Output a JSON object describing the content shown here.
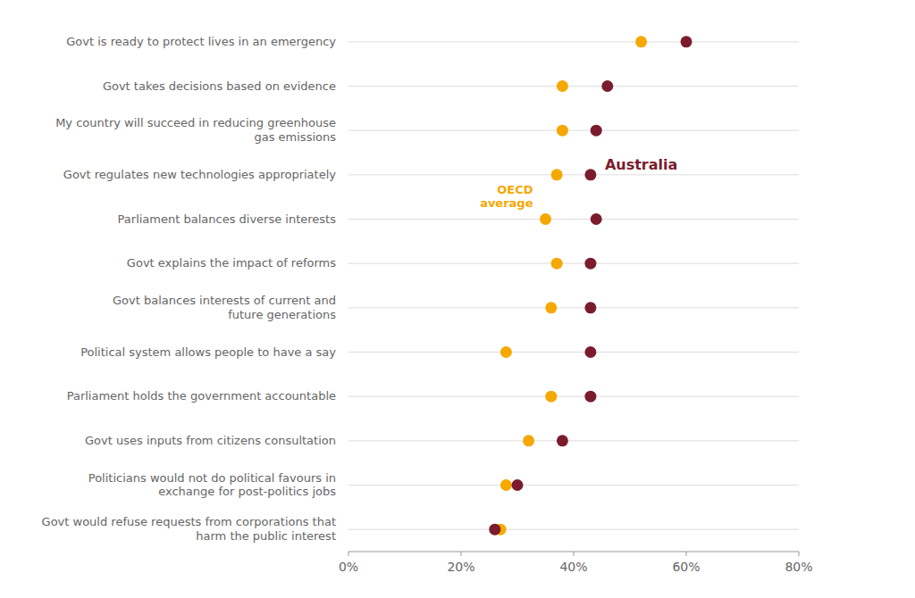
{
  "chart_data": {
    "type": "dot",
    "orientation": "horizontal",
    "categories": [
      "Govt is ready to protect lives in an emergency",
      "Govt takes decisions based on evidence",
      "My country will succeed in reducing greenhouse\ngas emissions",
      "Govt regulates new technologies appropriately",
      "Parliament balances diverse interests",
      "Govt explains the impact of reforms",
      "Govt balances interests of current and\nfuture generations",
      "Political system allows people to have a say",
      "Parliament holds the government accountable",
      "Govt uses inputs from citizens consultation",
      "Politicians would not do political favours in\nexchange for post-politics jobs",
      "Govt would refuse requests from corporations that\nharm the public interest"
    ],
    "series": [
      {
        "name": "OECD\naverage",
        "color": "#F5A800",
        "values": [
          52,
          38,
          38,
          37,
          35,
          37,
          36,
          28,
          36,
          32,
          28,
          27
        ]
      },
      {
        "name": "Australia",
        "color": "#7B1C2E",
        "values": [
          60,
          46,
          44,
          43,
          44,
          43,
          43,
          43,
          43,
          38,
          30,
          26
        ]
      }
    ],
    "xlim": [
      0,
      80
    ],
    "xticks": [
      {
        "value": 0,
        "label": "0%"
      },
      {
        "value": 20,
        "label": "20%"
      },
      {
        "value": 40,
        "label": "40%"
      },
      {
        "value": 60,
        "label": "60%"
      },
      {
        "value": 80,
        "label": "80%"
      }
    ],
    "grid": true
  }
}
